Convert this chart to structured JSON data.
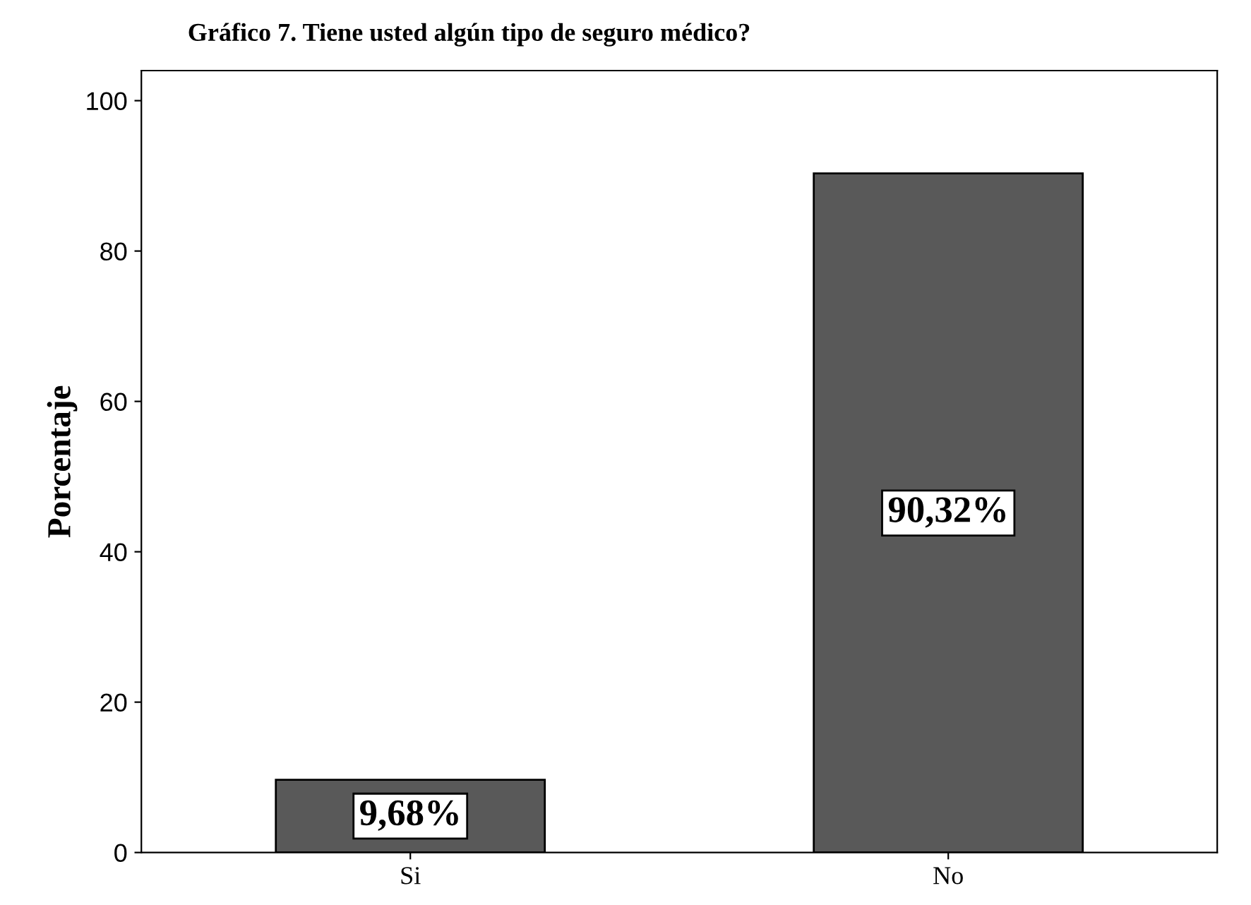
{
  "chart_data": {
    "type": "bar",
    "title": "Gráfico 7. Tiene usted algún tipo de seguro médico?",
    "ylabel": "Porcentaje",
    "categories": [
      "Si",
      "No"
    ],
    "values": [
      9.68,
      90.32
    ],
    "color": "#595959",
    "value_labels": [
      "9,68%",
      "90,32%"
    ],
    "ylim": [
      0,
      104
    ],
    "yticks": [
      0,
      20,
      40,
      60,
      80,
      100
    ],
    "grid": false
  }
}
